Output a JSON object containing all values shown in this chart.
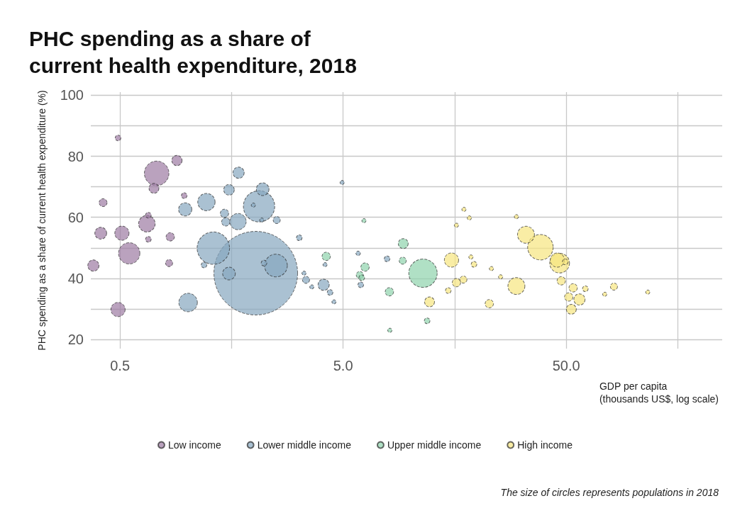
{
  "chart_data": {
    "type": "bubble",
    "title": "PHC spending as a share of\ncurrent health expenditure, 2018",
    "xlabel": "GDP per capita\n(thousands US$, log scale)",
    "ylabel": "PHC spending as a share of current health expenditure (%)",
    "annotations": [
      "The size of circles represents populations in 2018"
    ],
    "log": "x",
    "xlim": [
      0.37,
      250
    ],
    "ylim": [
      17,
      101
    ],
    "xticks": [
      {
        "value": 0.5,
        "label": "0.5"
      },
      {
        "value": 1.58,
        "label": null
      },
      {
        "value": 5,
        "label": "5.0"
      },
      {
        "value": 15.8,
        "label": null
      },
      {
        "value": 50,
        "label": "50.0"
      },
      {
        "value": 158,
        "label": null
      }
    ],
    "yticks": [
      20,
      {
        "value": 30,
        "label": null
      },
      40,
      {
        "value": 50,
        "label": null
      },
      60,
      {
        "value": 70,
        "label": null
      },
      80,
      {
        "value": 90,
        "label": null
      },
      100
    ],
    "grid": true,
    "legend": "bottom",
    "marker": "circle",
    "series": [
      {
        "name": "Low income",
        "color": "#9c7aa3",
        "x": [
          0.49,
          0.9,
          0.73,
          0.71,
          0.97,
          0.42,
          0.66,
          0.67,
          0.41,
          0.51,
          0.67,
          0.84,
          0.55,
          0.38,
          0.83,
          0.49
        ],
        "values": [
          86,
          78.6,
          74.4,
          69.5,
          67.1,
          64.8,
          57.9,
          60.7,
          54.8,
          54.8,
          52.8,
          53.6,
          48.2,
          44.2,
          45,
          29.8
        ],
        "sizes": [
          0.0046,
          0.015,
          0.086,
          0.014,
          0.0046,
          0.009,
          0.039,
          0.0046,
          0.02,
          0.029,
          0.0046,
          0.01,
          0.065,
          0.018,
          0.0072,
          0.029
        ]
      },
      {
        "name": "Lower middle income",
        "color": "#86a6bf",
        "x": [
          2.03,
          1.31,
          2.1,
          1.22,
          0.98,
          1.7,
          1.54,
          2.18,
          1.47,
          1.49,
          1.69,
          2.52,
          2.5,
          2.21,
          1.54,
          1.19,
          1.01,
          3.18,
          3.41,
          3.34,
          1.98,
          2.16,
          4.95,
          4.15,
          3.62,
          4.09,
          4.37,
          4.55,
          5.84,
          6,
          7.87
        ],
        "values": [
          41.7,
          49.9,
          63.6,
          65,
          62.6,
          74.6,
          69,
          69.2,
          61.3,
          58.5,
          58.6,
          59.1,
          44.2,
          45,
          41.6,
          44.4,
          32.1,
          53.3,
          39.5,
          41.7,
          64,
          59.1,
          71.4,
          44.5,
          37.2,
          37.9,
          35.4,
          32.3,
          48.2,
          37.9,
          46.4
        ],
        "sizes": [
          1,
          0.15,
          0.14,
          0.043,
          0.025,
          0.018,
          0.016,
          0.023,
          0.01,
          0.01,
          0.038,
          0.0072,
          0.074,
          0.0046,
          0.023,
          0.0046,
          0.049,
          0.0046,
          0.0072,
          0.0025,
          0.0025,
          0.0025,
          0.0025,
          0.0025,
          0.0025,
          0.018,
          0.0046,
          0.0025,
          0.0029,
          0.0046,
          0.0046
        ]
      },
      {
        "name": "Upper middle income",
        "color": "#8fd3ad",
        "x": [
          11.4,
          4.2,
          6.2,
          6.27,
          5.94,
          6.06,
          9.3,
          9.25,
          8.06,
          11.9,
          8.1
        ],
        "values": [
          41.7,
          47.2,
          58.9,
          43.7,
          41.1,
          40.2,
          51.4,
          45.8,
          35.6,
          26.1,
          23
        ],
        "sizes": [
          0.115,
          0.01,
          0.0025,
          0.01,
          0.0072,
          0.0046,
          0.014,
          0.0072,
          0.01,
          0.0046,
          0.0026
        ]
      },
      {
        "name": "High income",
        "color": "#f7e57f",
        "x": [
          38.3,
          33,
          46.7,
          45.6,
          49.5,
          15.3,
          18.7,
          19.3,
          23.1,
          25.4,
          29.9,
          16.1,
          17.3,
          14.8,
          12.2,
          22.6,
          47.5,
          53.7,
          60.9,
          51.3,
          57.3,
          52.7,
          81.8,
          74.4,
          116,
          17.4,
          18.4,
          29.9,
          16.1
        ],
        "values": [
          50.2,
          54.3,
          45,
          46,
          45.4,
          46,
          47,
          44.6,
          43.2,
          40.5,
          37.5,
          38.6,
          39.6,
          36,
          32.3,
          31.7,
          39.2,
          36.9,
          36.6,
          33.9,
          33.1,
          29.9,
          37.3,
          34.8,
          35.5,
          62.6,
          59.8,
          60.2,
          57.4
        ],
        "sizes": [
          0.093,
          0.041,
          0.056,
          0.029,
          0.0046,
          0.029,
          0.0026,
          0.0046,
          0.0025,
          0.0026,
          0.041,
          0.01,
          0.0072,
          0.0046,
          0.014,
          0.01,
          0.01,
          0.01,
          0.0046,
          0.01,
          0.018,
          0.014,
          0.0072,
          0.0025,
          0.0025,
          0.0025,
          0.0025,
          0.0025,
          0.0025
        ]
      }
    ]
  }
}
